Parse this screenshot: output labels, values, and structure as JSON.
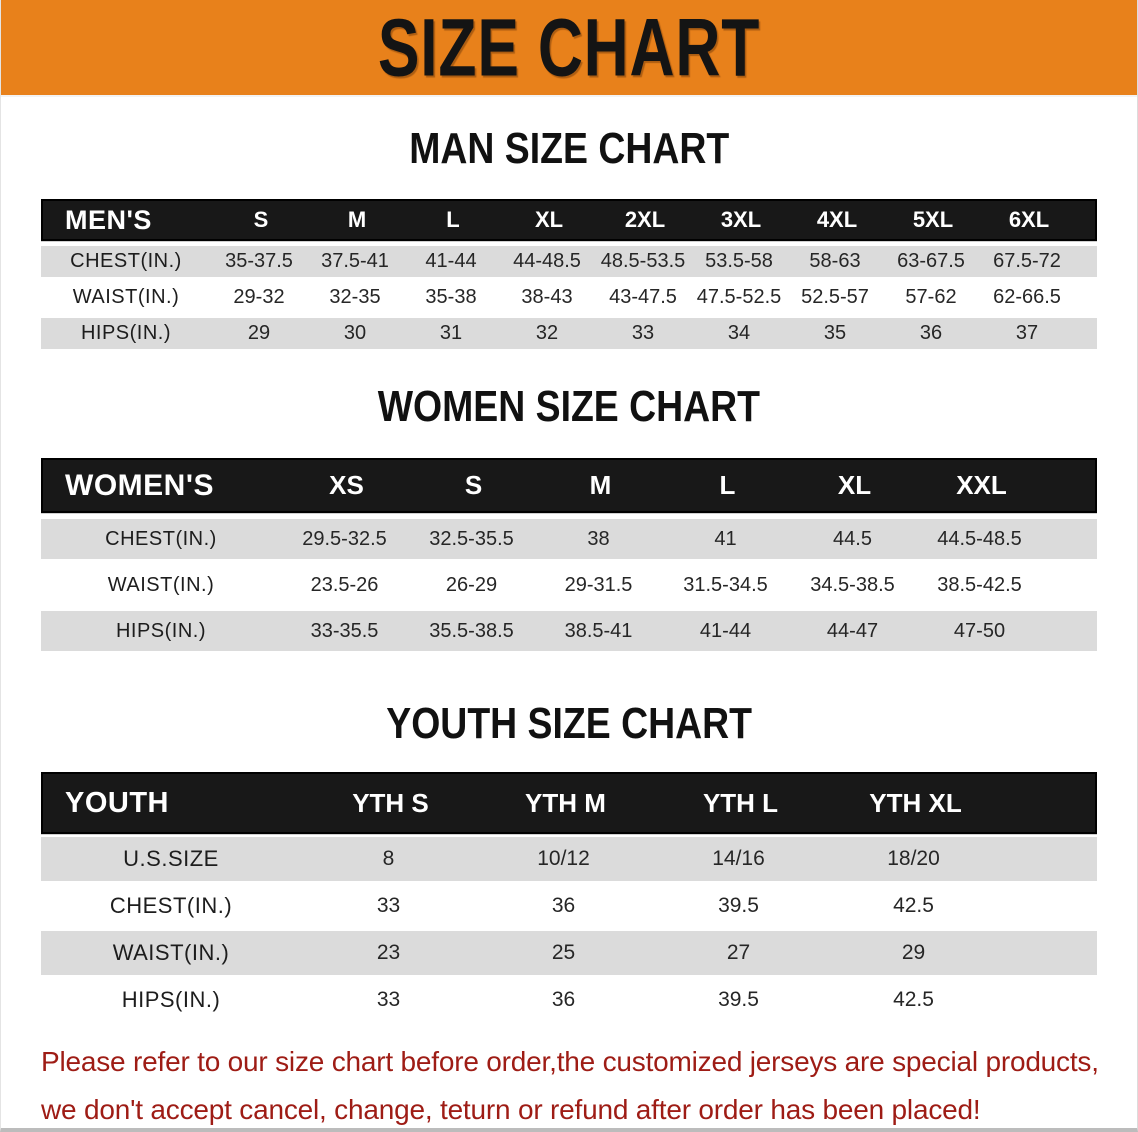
{
  "banner": {
    "title": "SIZE CHART",
    "bg_color": "#e8811b",
    "text_color": "#141414"
  },
  "sections": [
    {
      "heading": "MAN SIZE CHART",
      "table": {
        "header_label": "MEN'S",
        "columns": [
          "S",
          "M",
          "L",
          "XL",
          "2XL",
          "3XL",
          "4XL",
          "5XL",
          "6XL"
        ],
        "rows": [
          {
            "label": "CHEST(IN.)",
            "values": [
              "35-37.5",
              "37.5-41",
              "41-44",
              "44-48.5",
              "48.5-53.5",
              "53.5-58",
              "58-63",
              "63-67.5",
              "67.5-72"
            ]
          },
          {
            "label": "WAIST(IN.)",
            "values": [
              "29-32",
              "32-35",
              "35-38",
              "38-43",
              "43-47.5",
              "47.5-52.5",
              "52.5-57",
              "57-62",
              "62-66.5"
            ]
          },
          {
            "label": "HIPS(IN.)",
            "values": [
              "29",
              "30",
              "31",
              "32",
              "33",
              "34",
              "35",
              "36",
              "37"
            ]
          }
        ]
      }
    },
    {
      "heading": "WOMEN SIZE CHART",
      "table": {
        "header_label": "WOMEN'S",
        "columns": [
          "XS",
          "S",
          "M",
          "L",
          "XL",
          "XXL"
        ],
        "rows": [
          {
            "label": "CHEST(IN.)",
            "values": [
              "29.5-32.5",
              "32.5-35.5",
              "38",
              "41",
              "44.5",
              "44.5-48.5"
            ]
          },
          {
            "label": "WAIST(IN.)",
            "values": [
              "23.5-26",
              "26-29",
              "29-31.5",
              "31.5-34.5",
              "34.5-38.5",
              "38.5-42.5"
            ]
          },
          {
            "label": "HIPS(IN.)",
            "values": [
              "33-35.5",
              "35.5-38.5",
              "38.5-41",
              "41-44",
              "44-47",
              "47-50"
            ]
          }
        ]
      }
    },
    {
      "heading": "YOUTH SIZE CHART",
      "table": {
        "header_label": "YOUTH",
        "columns": [
          "YTH S",
          "YTH M",
          "YTH L",
          "YTH XL"
        ],
        "rows": [
          {
            "label": "U.S.SIZE",
            "values": [
              "8",
              "10/12",
              "14/16",
              "18/20"
            ]
          },
          {
            "label": "CHEST(IN.)",
            "values": [
              "33",
              "36",
              "39.5",
              "42.5"
            ]
          },
          {
            "label": "WAIST(IN.)",
            "values": [
              "23",
              "25",
              "27",
              "29"
            ]
          },
          {
            "label": "HIPS(IN.)",
            "values": [
              "33",
              "36",
              "39.5",
              "42.5"
            ]
          }
        ]
      }
    }
  ],
  "disclaimer": {
    "line1": "Please refer to our size chart before order,the customized jerseys are special products,",
    "line2": "we don't accept cancel, change, teturn or refund after order has been placed!",
    "color": "#9e1c15"
  }
}
